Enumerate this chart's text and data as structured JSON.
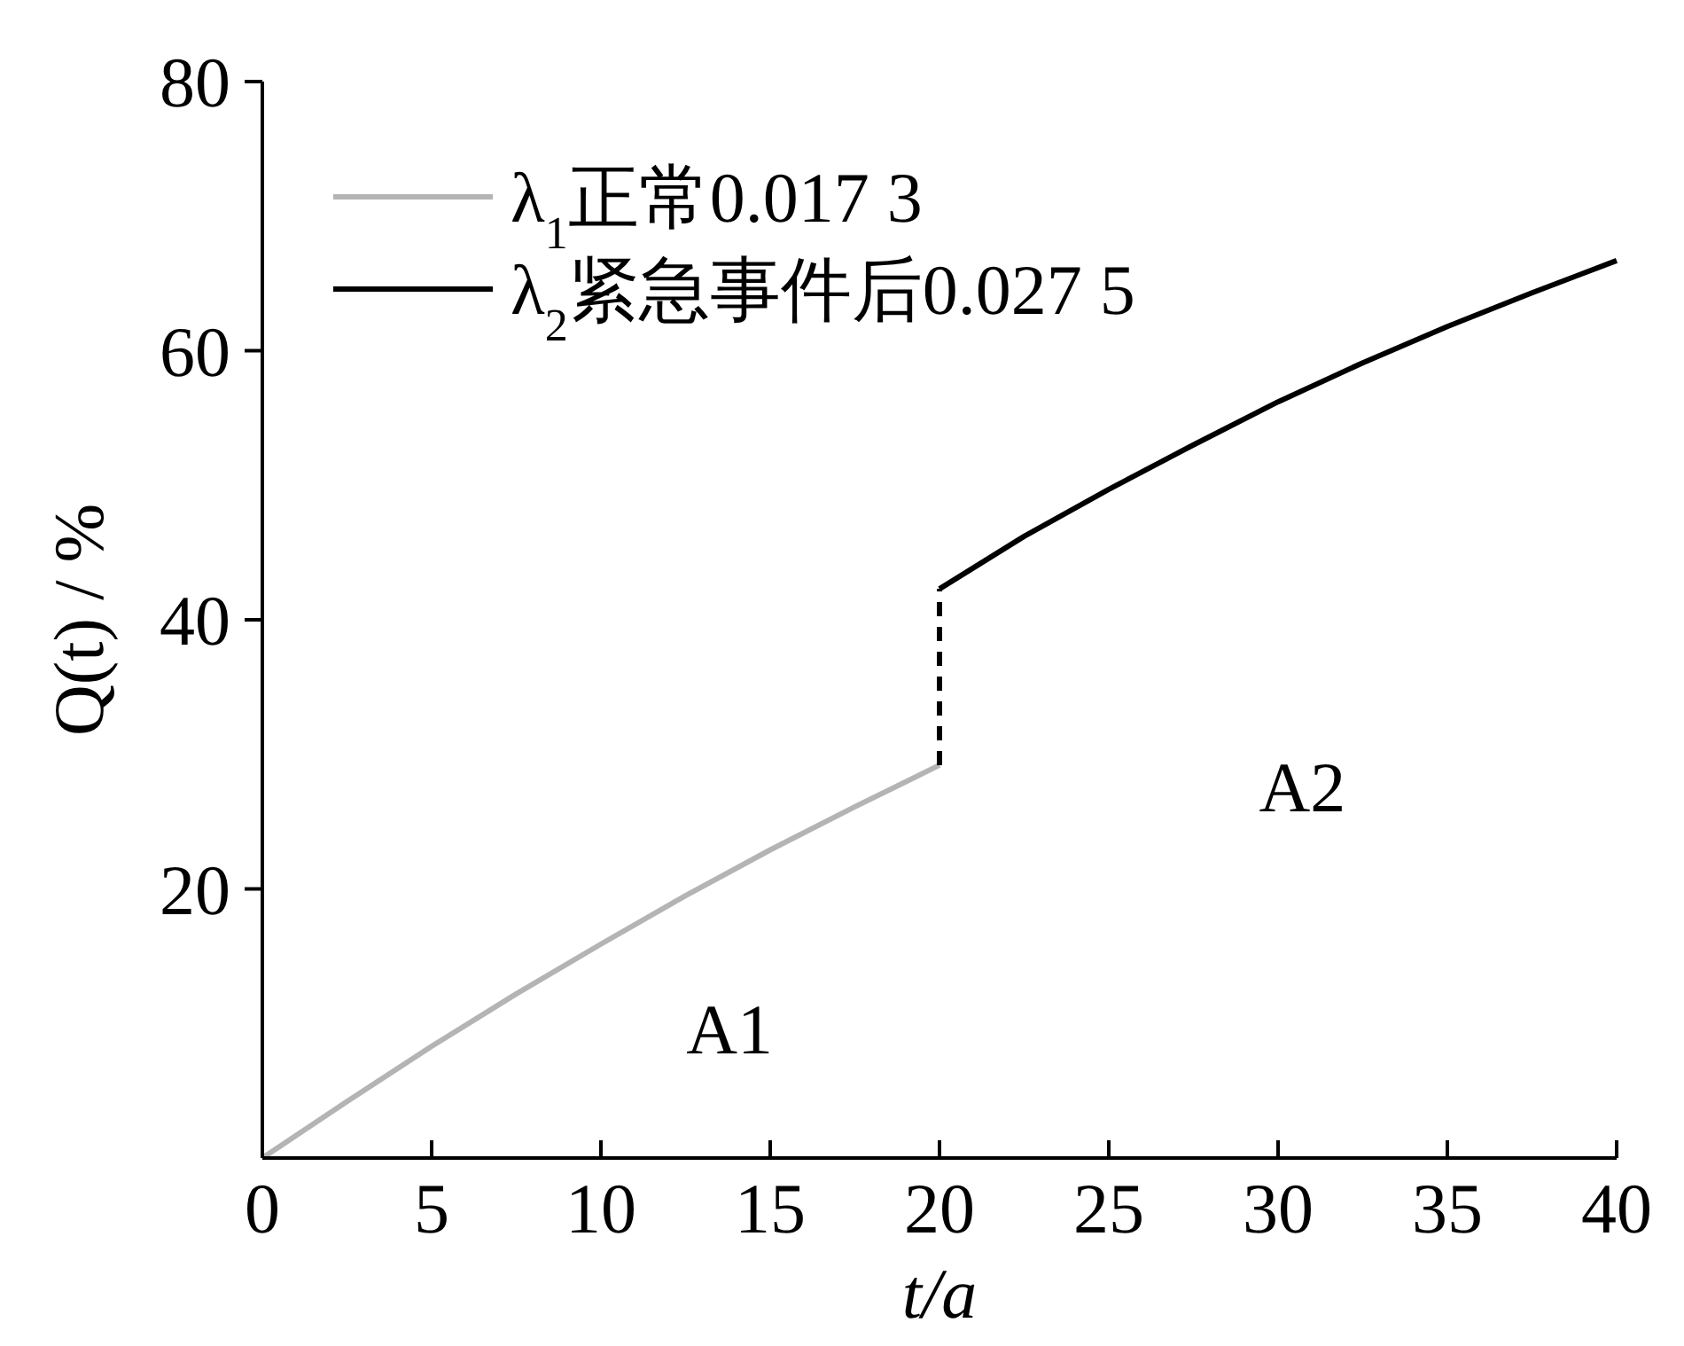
{
  "chart_data": {
    "type": "line",
    "xlabel": "t/a",
    "ylabel": "Q(t) / %",
    "xlim": [
      0,
      40
    ],
    "ylim": [
      0,
      80
    ],
    "xticks": [
      0,
      5,
      10,
      15,
      20,
      25,
      30,
      35,
      40
    ],
    "yticks": [
      20,
      40,
      60,
      80
    ],
    "legend": "top left",
    "grid": false,
    "series": [
      {
        "name": "λ$_{1}$正常0.017 3",
        "color": "#b4b4b4",
        "x": [
          0,
          2.5,
          5,
          7.5,
          10,
          12.5,
          15,
          17.5,
          20
        ],
        "values": [
          0,
          4.2,
          8.3,
          12.2,
          15.9,
          19.5,
          22.9,
          26.1,
          29.2
        ]
      },
      {
        "name": "λ$_{2}$紧急事件后0.027 5",
        "color": "#000000",
        "x": [
          20,
          22.5,
          25,
          27.5,
          30,
          32.5,
          35,
          37.5,
          40
        ],
        "values": [
          42.3,
          46.2,
          49.7,
          53.0,
          56.2,
          59.1,
          61.8,
          64.3,
          66.7
        ]
      },
      {
        "color": "#000000",
        "line_style": "dashed",
        "x": [
          20,
          20
        ],
        "values": [
          29.2,
          42.3
        ]
      }
    ],
    "annotations": [
      "A1",
      "A2"
    ]
  }
}
